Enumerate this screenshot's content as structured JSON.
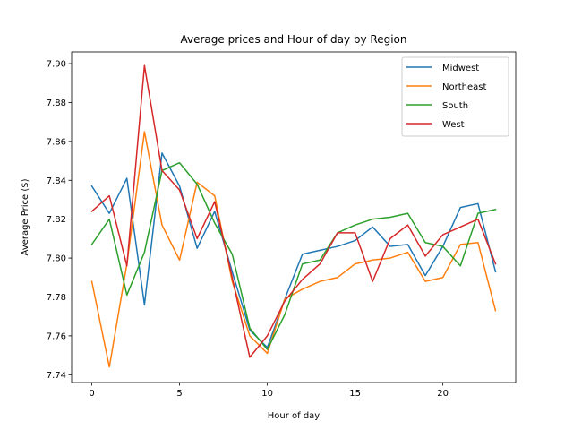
{
  "chart_data": {
    "type": "line",
    "title": "Average prices and Hour of day by Region",
    "xlabel": "Hour of day",
    "ylabel": "Average Price ($)",
    "xlim": [
      -1.15,
      24.15
    ],
    "ylim": [
      7.736,
      7.906
    ],
    "xticks": [
      0,
      5,
      10,
      15,
      20
    ],
    "yticks": [
      7.74,
      7.76,
      7.78,
      7.8,
      7.82,
      7.84,
      7.86,
      7.88,
      7.9
    ],
    "ytick_labels": [
      "7.74",
      "7.76",
      "7.78",
      "7.80",
      "7.82",
      "7.84",
      "7.86",
      "7.88",
      "7.90"
    ],
    "grid": false,
    "legend_position": "top-right",
    "x": [
      0,
      1,
      2,
      3,
      4,
      5,
      6,
      7,
      8,
      9,
      10,
      11,
      12,
      13,
      14,
      15,
      16,
      17,
      18,
      19,
      20,
      21,
      22,
      23
    ],
    "series": [
      {
        "name": "Midwest",
        "color": "#1f77b4",
        "values": [
          7.837,
          7.823,
          7.841,
          7.776,
          7.854,
          7.837,
          7.805,
          7.824,
          7.793,
          7.763,
          7.754,
          7.779,
          7.802,
          7.804,
          7.806,
          7.809,
          7.816,
          7.806,
          7.807,
          7.791,
          7.806,
          7.826,
          7.828,
          7.793
        ]
      },
      {
        "name": "Northeast",
        "color": "#ff7f0e",
        "values": [
          7.788,
          7.744,
          7.797,
          7.865,
          7.817,
          7.799,
          7.839,
          7.832,
          7.788,
          7.76,
          7.751,
          7.779,
          7.784,
          7.788,
          7.79,
          7.797,
          7.799,
          7.8,
          7.803,
          7.788,
          7.79,
          7.807,
          7.808,
          7.773
        ]
      },
      {
        "name": "South",
        "color": "#2ca02c",
        "values": [
          7.807,
          7.82,
          7.781,
          7.803,
          7.845,
          7.849,
          7.838,
          7.818,
          7.802,
          7.764,
          7.753,
          7.771,
          7.797,
          7.799,
          7.813,
          7.817,
          7.82,
          7.821,
          7.823,
          7.808,
          7.806,
          7.796,
          7.823,
          7.825
        ]
      },
      {
        "name": "West",
        "color": "#d62728",
        "values": [
          7.824,
          7.832,
          7.796,
          7.899,
          7.845,
          7.835,
          7.81,
          7.829,
          7.79,
          7.749,
          7.76,
          7.778,
          7.789,
          7.797,
          7.813,
          7.813,
          7.788,
          7.81,
          7.817,
          7.801,
          7.812,
          7.816,
          7.82,
          7.797
        ]
      }
    ]
  }
}
